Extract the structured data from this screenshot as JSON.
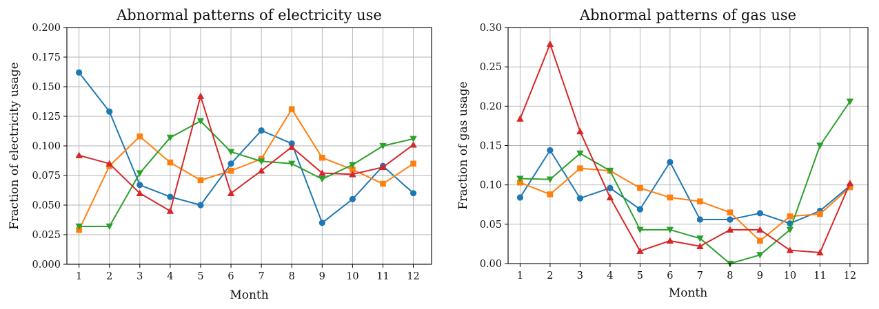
{
  "chart_data": [
    {
      "type": "line",
      "title": "Abnormal patterns of electricity use",
      "xlabel": "Month",
      "ylabel": "Fraction of electricity usage",
      "x": [
        "1",
        "2",
        "3",
        "4",
        "5",
        "6",
        "7",
        "8",
        "9",
        "10",
        "11",
        "12"
      ],
      "xlim": [
        0.6,
        12.6
      ],
      "ylim": [
        0,
        0.2
      ],
      "yticks": [
        "0.000",
        "0.025",
        "0.050",
        "0.075",
        "0.100",
        "0.125",
        "0.150",
        "0.175",
        "0.200"
      ],
      "grid": true,
      "series": [
        {
          "color": "#1f77b4",
          "marker": "circle",
          "values": [
            0.162,
            0.129,
            0.067,
            0.057,
            0.05,
            0.085,
            0.113,
            0.102,
            0.035,
            0.055,
            0.083,
            0.06
          ]
        },
        {
          "color": "#ff7f0e",
          "marker": "square",
          "values": [
            0.029,
            0.083,
            0.108,
            0.086,
            0.071,
            0.079,
            0.089,
            0.131,
            0.09,
            0.08,
            0.068,
            0.085
          ]
        },
        {
          "color": "#2ca02c",
          "marker": "triangle-down",
          "values": [
            0.032,
            0.032,
            0.077,
            0.107,
            0.121,
            0.095,
            0.087,
            0.085,
            0.072,
            0.084,
            0.1,
            0.106
          ]
        },
        {
          "color": "#d62728",
          "marker": "triangle-up",
          "values": [
            0.092,
            0.085,
            0.06,
            0.045,
            0.142,
            0.06,
            0.079,
            0.099,
            0.077,
            0.076,
            0.082,
            0.101
          ]
        }
      ]
    },
    {
      "type": "line",
      "title": "Abnormal patterns of gas use",
      "xlabel": "Month",
      "ylabel": "Fraction of gas usage",
      "x": [
        "1",
        "2",
        "3",
        "4",
        "5",
        "6",
        "7",
        "8",
        "9",
        "10",
        "11",
        "12"
      ],
      "xlim": [
        0.6,
        12.6
      ],
      "ylim": [
        0,
        0.3
      ],
      "yticks": [
        "0.00",
        "0.05",
        "0.10",
        "0.15",
        "0.20",
        "0.25",
        "0.30"
      ],
      "grid": true,
      "series": [
        {
          "color": "#1f77b4",
          "marker": "circle",
          "values": [
            0.084,
            0.144,
            0.083,
            0.096,
            0.069,
            0.129,
            0.056,
            0.056,
            0.064,
            0.051,
            0.067,
            0.099
          ]
        },
        {
          "color": "#ff7f0e",
          "marker": "square",
          "values": [
            0.103,
            0.088,
            0.121,
            0.118,
            0.096,
            0.084,
            0.079,
            0.065,
            0.029,
            0.06,
            0.063,
            0.097
          ]
        },
        {
          "color": "#2ca02c",
          "marker": "triangle-down",
          "values": [
            0.108,
            0.107,
            0.14,
            0.118,
            0.043,
            0.043,
            0.032,
            0.0,
            0.011,
            0.043,
            0.15,
            0.206
          ]
        },
        {
          "color": "#d62728",
          "marker": "triangle-up",
          "values": [
            0.184,
            0.279,
            0.168,
            0.084,
            0.016,
            0.029,
            0.022,
            0.043,
            0.043,
            0.017,
            0.014,
            0.102
          ]
        }
      ]
    }
  ]
}
